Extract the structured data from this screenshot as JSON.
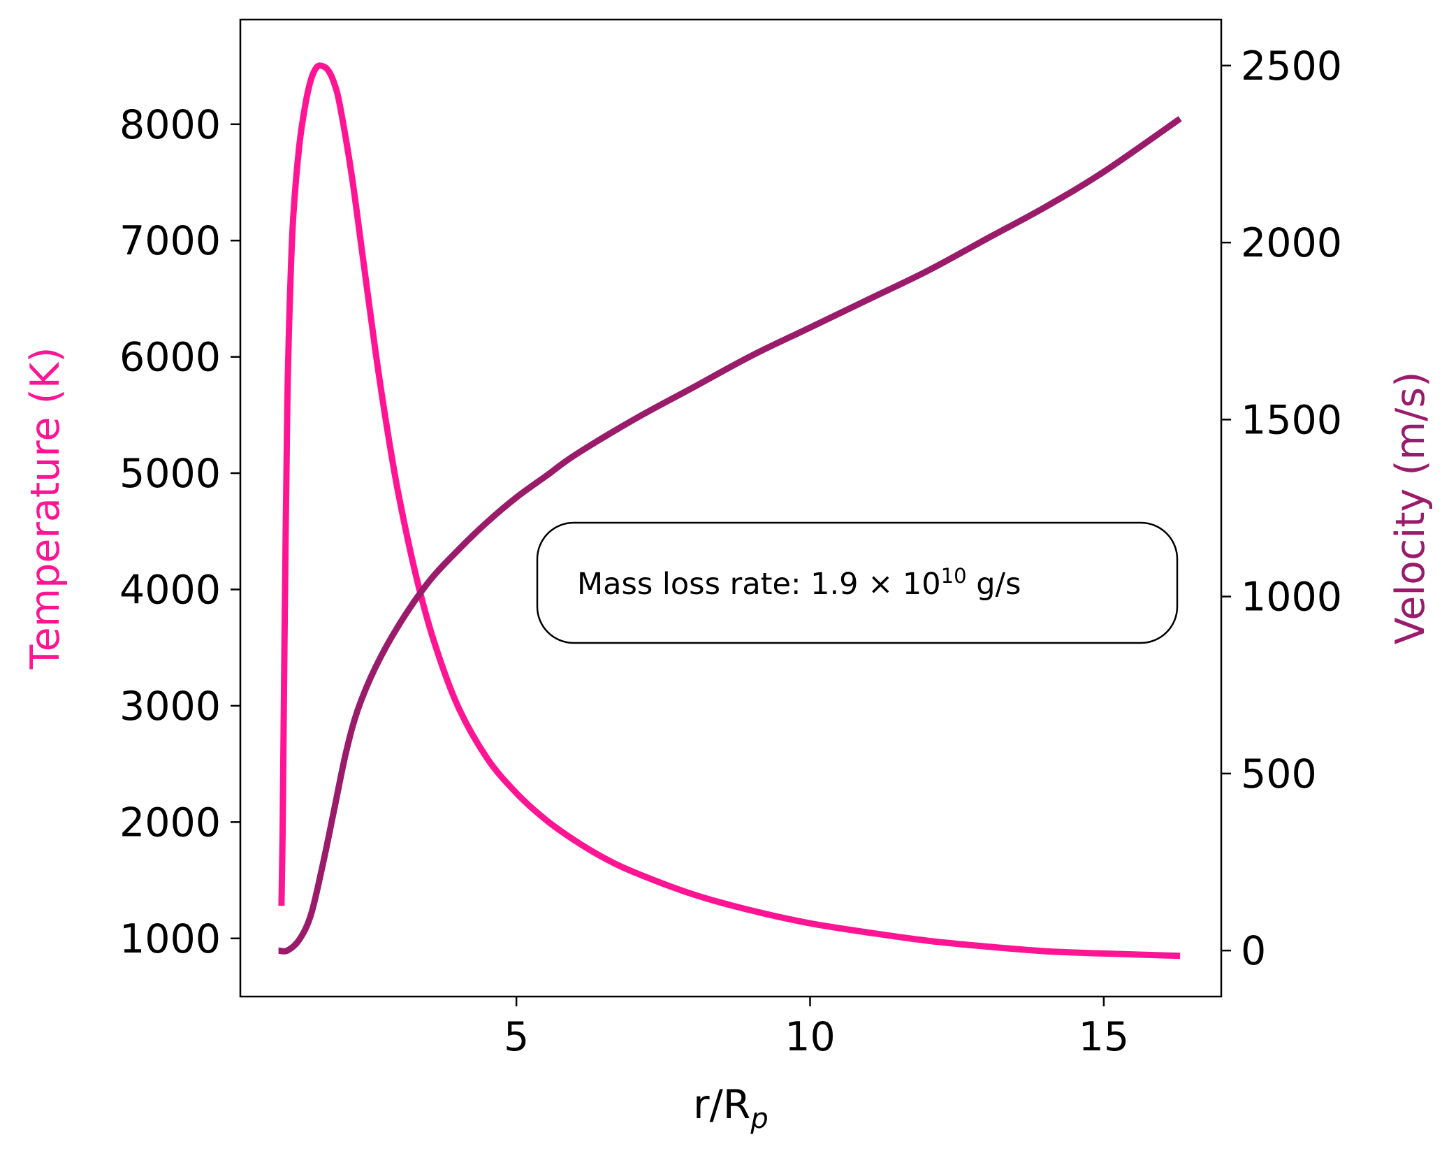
{
  "chart_data": {
    "type": "line",
    "title": "",
    "xlabel_main": "r/R",
    "xlabel_sub": "p",
    "ylabel_left": "Temperature (K)",
    "ylabel_right": "Velocity (m/s)",
    "xlim": [
      0.3,
      17.0
    ],
    "ylim_left": [
      500,
      8900
    ],
    "ylim_right": [
      -130,
      2630
    ],
    "x_ticks": [
      5,
      10,
      15
    ],
    "x_tick_labels": [
      "5",
      "10",
      "15"
    ],
    "left_ticks": [
      1000,
      2000,
      3000,
      4000,
      5000,
      6000,
      7000,
      8000
    ],
    "left_tick_labels": [
      "1000",
      "2000",
      "3000",
      "4000",
      "5000",
      "6000",
      "7000",
      "8000"
    ],
    "right_ticks": [
      0,
      500,
      1000,
      1500,
      2000,
      2500
    ],
    "right_tick_labels": [
      "0",
      "500",
      "1000",
      "1500",
      "2000",
      "2500"
    ],
    "grid": false,
    "annotation": {
      "prefix": "Mass loss rate: 1.9 × 10",
      "exponent": "10",
      "suffix": " g/s"
    },
    "series": [
      {
        "name": "Temperature",
        "axis": "left",
        "color": "#ff1493",
        "x": [
          1.0,
          1.02,
          1.05,
          1.1,
          1.15,
          1.2,
          1.3,
          1.4,
          1.5,
          1.6,
          1.7,
          1.8,
          1.9,
          2.0,
          2.2,
          2.4,
          2.6,
          2.8,
          3.0,
          3.3,
          3.6,
          4.0,
          4.5,
          5.0,
          5.5,
          6.0,
          6.5,
          7.0,
          8.0,
          9.0,
          10.0,
          11.0,
          12.0,
          13.0,
          14.0,
          15.0,
          16.3
        ],
        "y": [
          1280,
          1900,
          3500,
          5600,
          6600,
          7200,
          7800,
          8150,
          8380,
          8490,
          8500,
          8460,
          8350,
          8150,
          7550,
          6800,
          6050,
          5380,
          4800,
          4100,
          3550,
          3000,
          2550,
          2250,
          2020,
          1840,
          1690,
          1570,
          1380,
          1240,
          1130,
          1050,
          980,
          930,
          890,
          870,
          850
        ]
      },
      {
        "name": "Velocity",
        "axis": "right",
        "color": "#9b1b6b",
        "x": [
          0.95,
          1.1,
          1.3,
          1.5,
          1.7,
          1.9,
          2.1,
          2.3,
          2.6,
          3.0,
          3.5,
          4.0,
          4.5,
          5.0,
          5.5,
          6.0,
          7.0,
          8.0,
          9.0,
          10.0,
          11.0,
          12.0,
          13.0,
          14.0,
          15.0,
          16.3
        ],
        "y": [
          0,
          0,
          30,
          100,
          240,
          400,
          560,
          680,
          800,
          920,
          1040,
          1130,
          1210,
          1280,
          1340,
          1400,
          1500,
          1590,
          1680,
          1760,
          1840,
          1920,
          2010,
          2100,
          2200,
          2350
        ]
      }
    ]
  }
}
